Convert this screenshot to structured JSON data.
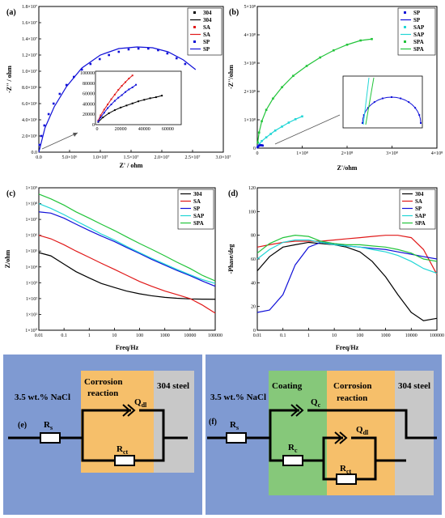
{
  "chart_data": [
    {
      "panel": "(a)",
      "type": "scatter",
      "xlabel": "Z' / ohm",
      "ylabel": "-Z'' / ohm",
      "xlim": [
        0,
        30000000
      ],
      "ylim": [
        0,
        18000000
      ],
      "xticks": [
        "0.0",
        "5.0×10⁶",
        "1.0×10⁷",
        "1.5×10⁷",
        "2.0×10⁷",
        "2.5×10⁷",
        "3.0×10⁷"
      ],
      "yticks": [
        "0.0",
        "2.0×10⁶",
        "4.0×10⁶",
        "6.0×10⁶",
        "8.0×10⁶",
        "1.0×10⁷",
        "1.2×10⁷",
        "1.4×10⁷",
        "1.6×10⁷",
        "1.8×10⁷"
      ],
      "legend": [
        "304",
        "304",
        "SA",
        "SA",
        "SP",
        "SP"
      ],
      "legend_position": "top-right",
      "series": [
        {
          "name": "SP",
          "color": "#1010d8",
          "style": "points",
          "x": [
            100000,
            400000,
            900000,
            1600000,
            2400000,
            3400000,
            4500000,
            5700000,
            7000000,
            8400000,
            9900000,
            11400000,
            13000000,
            14600000,
            16200000,
            17800000,
            19400000,
            20900000,
            22400000,
            23800000
          ],
          "y": [
            900000,
            2000000,
            3300000,
            4700000,
            6000000,
            7200000,
            8300000,
            9300000,
            10200000,
            10900000,
            11500000,
            12000000,
            12400000,
            12700000,
            12800000,
            12800000,
            12600000,
            12200000,
            11600000,
            10900000
          ]
        },
        {
          "name": "SP",
          "color": "#1010d8",
          "style": "fit",
          "x": [
            0,
            1000000,
            2500000,
            4500000,
            7000000,
            10000000,
            13000000,
            16000000,
            18500000,
            21000000,
            23500000,
            25500000
          ],
          "y": [
            0,
            3000000,
            5600000,
            8100000,
            10400000,
            12000000,
            12800000,
            13000000,
            12900000,
            12400000,
            11400000,
            10200000
          ]
        }
      ],
      "inset": {
        "xlim": [
          0,
          70000
        ],
        "ylim": [
          0,
          100000
        ],
        "xticks": [
          "0",
          "20000",
          "40000",
          "60000"
        ],
        "yticks": [
          "0",
          "20000",
          "40000",
          "60000",
          "80000",
          "100000"
        ],
        "series": [
          {
            "name": "304",
            "color": "#000000",
            "x": [
              1000,
              5000,
              10000,
              15000,
              20000,
              25000,
              30000,
              35000,
              40000,
              45000,
              50000,
              55000
            ],
            "y": [
              5000,
              14000,
              22000,
              28000,
              33000,
              37000,
              41000,
              45000,
              48000,
              51000,
              53000,
              56000
            ]
          },
          {
            "name": "SA",
            "color": "#e01818",
            "x": [
              1000,
              3000,
              6000,
              9000,
              12000,
              15000,
              18000,
              21000,
              24000,
              27000,
              30000
            ],
            "y": [
              8000,
              18000,
              29000,
              39000,
              49000,
              58000,
              67000,
              75000,
              82000,
              89000,
              95000
            ]
          },
          {
            "name": "SP",
            "color": "#1010d8",
            "x": [
              1000,
              3000,
              6000,
              9000,
              12000,
              15000,
              18000,
              21000,
              24000,
              27000,
              30000,
              33000
            ],
            "y": [
              6000,
              14000,
              23000,
              32000,
              39000,
              46000,
              52000,
              57000,
              63000,
              68000,
              72000,
              77000
            ]
          }
        ]
      }
    },
    {
      "panel": "(b)",
      "type": "scatter",
      "xlabel": "Z'/ohm",
      "ylabel": "-Z''/ohm",
      "xlim": [
        0,
        400000000
      ],
      "ylim": [
        0,
        500000000
      ],
      "xticks": [
        "0",
        "1×10⁸",
        "2×10⁸",
        "3×10⁸",
        "4×10⁸"
      ],
      "yticks": [
        "0",
        "1×10⁸",
        "2×10⁸",
        "3×10⁸",
        "4×10⁸",
        "5×10⁸"
      ],
      "legend": [
        "SP",
        "SP",
        "SAP",
        "SAP",
        "SPA",
        "SPA"
      ],
      "legend_position": "top-right",
      "series": [
        {
          "name": "SPA",
          "color": "#22c43a",
          "x": [
            1000000,
            4000000,
            10000000,
            20000000,
            35000000,
            55000000,
            80000000,
            110000000,
            140000000,
            170000000,
            200000000,
            230000000,
            255000000
          ],
          "y": [
            20000000,
            55000000,
            95000000,
            135000000,
            175000000,
            215000000,
            255000000,
            290000000,
            320000000,
            345000000,
            365000000,
            380000000,
            385000000
          ]
        },
        {
          "name": "SAP",
          "color": "#22d6d6",
          "x": [
            1000000,
            5000000,
            10000000,
            20000000,
            30000000,
            40000000,
            55000000,
            70000000,
            85000000,
            100000000
          ],
          "y": [
            5000000,
            15000000,
            25000000,
            38000000,
            50000000,
            62000000,
            76000000,
            90000000,
            102000000,
            112000000
          ]
        },
        {
          "name": "SP",
          "color": "#1010d8",
          "x": [
            500000,
            2000000,
            4000000,
            6000000,
            8000000,
            10000000,
            12000000
          ],
          "y": [
            3000000,
            6000000,
            9000000,
            10000000,
            10500000,
            10000000,
            9000000
          ]
        }
      ]
    },
    {
      "panel": "(c)",
      "type": "line",
      "xlabel": "Freq/Hz",
      "ylabel": "Z/ohm",
      "xscale": "log",
      "yscale": "log",
      "xlim": [
        0.01,
        100000
      ],
      "ylim": [
        1,
        1000000000
      ],
      "xticks": [
        "0.01",
        "0.1",
        "1",
        "10",
        "100",
        "1000",
        "10000",
        "100000"
      ],
      "yticks": [
        "1×10⁰",
        "1×10¹",
        "1×10²",
        "1×10³",
        "1×10⁴",
        "1×10⁵",
        "1×10⁶",
        "1×10⁷",
        "1×10⁸",
        "1×10⁹"
      ],
      "legend": [
        "304",
        "SA",
        "SP",
        "SAP",
        "SPA"
      ],
      "legend_position": "top-right",
      "x": [
        0.01,
        0.03,
        0.1,
        0.3,
        1,
        3,
        10,
        30,
        100,
        300,
        1000,
        3000,
        10000,
        30000,
        100000
      ],
      "series": [
        {
          "name": "304",
          "color": "#000000",
          "values": [
            80000,
            50000,
            15000,
            5000,
            2000,
            900,
            500,
            300,
            200,
            150,
            120,
            105,
            95,
            92,
            90
          ]
        },
        {
          "name": "SA",
          "color": "#e01818",
          "values": [
            1000000,
            600000,
            250000,
            100000,
            40000,
            17000,
            7000,
            3000,
            1200,
            600,
            300,
            180,
            100,
            40,
            12
          ]
        },
        {
          "name": "SP",
          "color": "#1010d8",
          "values": [
            30000000,
            25000000,
            12000000,
            5000000,
            2000000,
            900000,
            400000,
            170000,
            70000,
            30000,
            13000,
            6000,
            2800,
            1300,
            600
          ]
        },
        {
          "name": "SAP",
          "color": "#22d6d6",
          "values": [
            100000000,
            50000000,
            20000000,
            8000000,
            3000000,
            1200000,
            500000,
            200000,
            80000,
            35000,
            15000,
            7000,
            3200,
            1600,
            900
          ]
        },
        {
          "name": "SPA",
          "color": "#22c43a",
          "values": [
            400000000,
            200000000,
            80000000,
            30000000,
            12000000,
            5000000,
            2000000,
            800000,
            300000,
            130000,
            50000,
            20000,
            8000,
            3000,
            1300
          ]
        }
      ]
    },
    {
      "panel": "(d)",
      "type": "line",
      "xlabel": "Freq/Hz",
      "ylabel": "-Phase/deg",
      "xscale": "log",
      "xlim": [
        0.01,
        100000
      ],
      "ylim": [
        0,
        120
      ],
      "xticks": [
        "0.01",
        "0.1",
        "1",
        "10",
        "100",
        "1000",
        "10000",
        "100000"
      ],
      "yticks": [
        "0",
        "20",
        "40",
        "60",
        "80",
        "100",
        "120"
      ],
      "legend": [
        "304",
        "SA",
        "SP",
        "SAP",
        "SPA"
      ],
      "legend_position": "top-right",
      "x": [
        0.01,
        0.03,
        0.1,
        0.3,
        1,
        3,
        10,
        30,
        100,
        300,
        1000,
        3000,
        10000,
        30000,
        100000
      ],
      "series": [
        {
          "name": "304",
          "color": "#000000",
          "values": [
            50,
            62,
            70,
            72,
            74,
            73,
            72,
            70,
            66,
            58,
            45,
            30,
            15,
            8,
            10
          ]
        },
        {
          "name": "SA",
          "color": "#e01818",
          "values": [
            70,
            72,
            74,
            75,
            75,
            75,
            76,
            77,
            78,
            79,
            80,
            80,
            78,
            68,
            47
          ]
        },
        {
          "name": "SP",
          "color": "#1010d8",
          "values": [
            15,
            17,
            30,
            55,
            70,
            74,
            73,
            71,
            70,
            69,
            68,
            66,
            64,
            62,
            60
          ]
        },
        {
          "name": "SAP",
          "color": "#22d6d6",
          "values": [
            60,
            68,
            74,
            76,
            76,
            74,
            72,
            71,
            70,
            68,
            66,
            63,
            58,
            52,
            48
          ]
        },
        {
          "name": "SPA",
          "color": "#22c43a",
          "values": [
            65,
            73,
            78,
            80,
            79,
            75,
            73,
            72,
            72,
            71,
            70,
            68,
            65,
            60,
            58
          ]
        }
      ]
    }
  ],
  "circuits": {
    "e": {
      "label": "(e)",
      "electrolyte": "3.5 wt.% NaCl",
      "reaction": [
        "Corrosion",
        "reaction"
      ],
      "steel": "304 steel",
      "rs": {
        "main": "R",
        "sub": "s"
      },
      "q": {
        "main": "Q",
        "sub": "dl"
      },
      "r": {
        "main": "R",
        "sub": "ct"
      }
    },
    "f": {
      "label": "(f)",
      "electrolyte": "3.5 wt.% NaCl",
      "coating": "Coating",
      "reaction": [
        "Corrosion",
        "reaction"
      ],
      "steel": "304 steel",
      "rs": {
        "main": "R",
        "sub": "s"
      },
      "qc": {
        "main": "Q",
        "sub": "c"
      },
      "rc": {
        "main": "R",
        "sub": "c"
      },
      "q": {
        "main": "Q",
        "sub": "dl"
      },
      "r": {
        "main": "R",
        "sub": "ct"
      }
    }
  }
}
